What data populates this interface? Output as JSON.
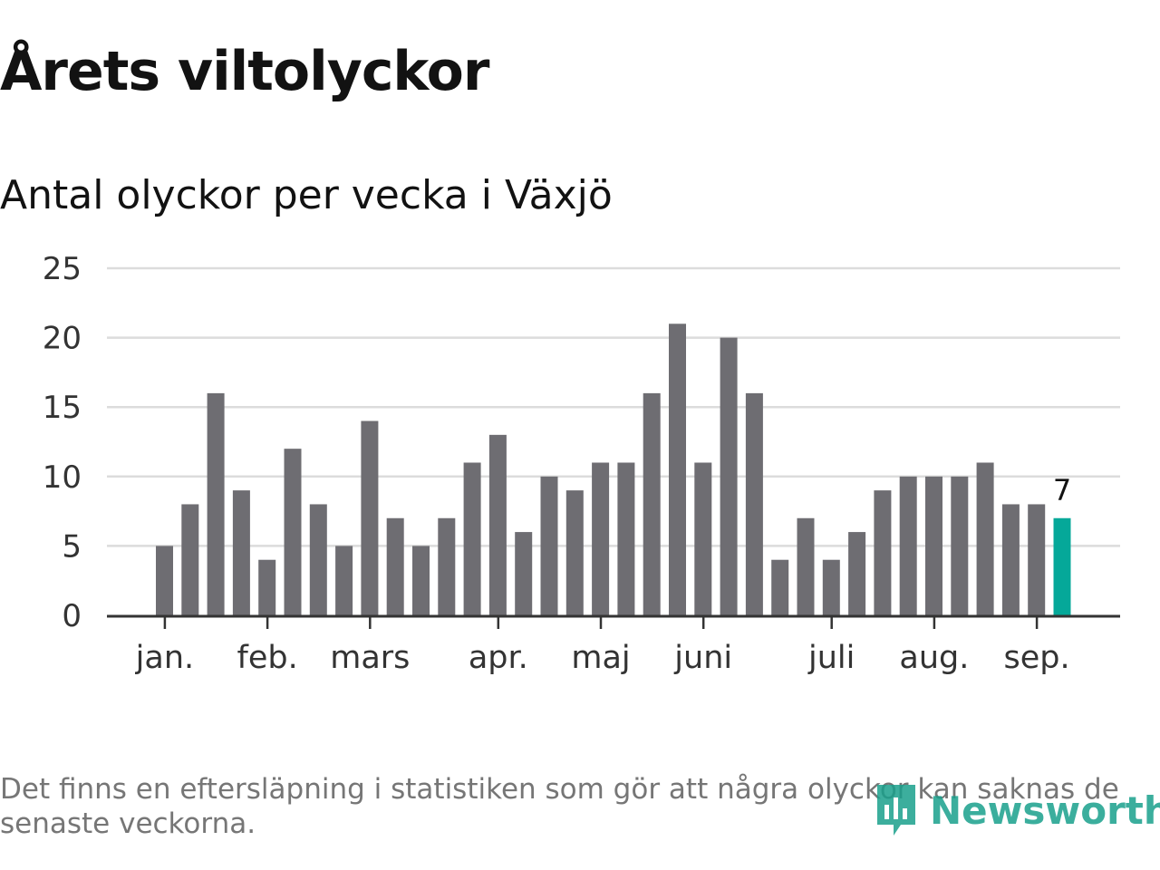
{
  "header": {
    "title": "Årets viltolyckor",
    "subtitle": "Antal olyckor per vecka i Växjö"
  },
  "footer": {
    "note": "Det finns en eftersläpning i statistiken som gör att några olyckor kan saknas de senaste veckorna.",
    "brand": "Newsworthy"
  },
  "colors": {
    "bar": "#6e6d72",
    "highlight": "#05a899",
    "grid": "#dcdcdc",
    "axis": "#333333",
    "brand": "#1aa08c"
  },
  "chart_data": {
    "type": "bar",
    "title": "Antal olyckor per vecka i Växjö",
    "xlabel": "",
    "ylabel": "",
    "ylim": [
      0,
      25
    ],
    "yticks": [
      0,
      5,
      10,
      15,
      20,
      25
    ],
    "grid": true,
    "series": [
      {
        "values": [
          5,
          8,
          16,
          9,
          4,
          12,
          8,
          5,
          14,
          7,
          5,
          7,
          11,
          13,
          6,
          10,
          9,
          11,
          11,
          16,
          21,
          11,
          20,
          16,
          4,
          7,
          4,
          6,
          9,
          10,
          10,
          10,
          11,
          8,
          8,
          7
        ]
      }
    ],
    "highlight_index": 35,
    "highlight_label": "7",
    "month_labels": [
      {
        "label": "jan.",
        "week_pos": 0.35
      },
      {
        "label": "feb.",
        "week_pos": 4.35
      },
      {
        "label": "mars",
        "week_pos": 8.35
      },
      {
        "label": "apr.",
        "week_pos": 13.35
      },
      {
        "label": "maj",
        "week_pos": 17.35
      },
      {
        "label": "juni",
        "week_pos": 21.35
      },
      {
        "label": "juli",
        "week_pos": 26.35
      },
      {
        "label": "aug.",
        "week_pos": 30.35
      },
      {
        "label": "sep.",
        "week_pos": 34.35
      }
    ]
  }
}
